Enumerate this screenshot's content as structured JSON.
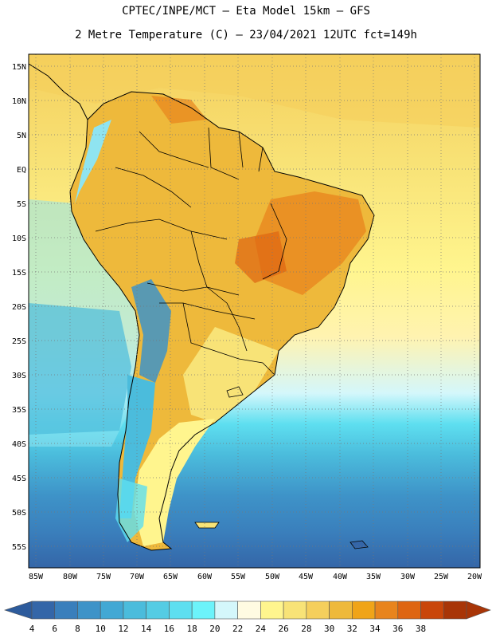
{
  "header": {
    "line1": "CPTEC/INPE/MCT –  Eta Model 15km – GFS",
    "line2": "2 Metre Temperature (C) – 23/04/2021 12UTC fct=149h"
  },
  "map": {
    "lat_labels": [
      "15N",
      "10N",
      "5N",
      "EQ",
      "5S",
      "10S",
      "15S",
      "20S",
      "25S",
      "30S",
      "35S",
      "40S",
      "45S",
      "50S",
      "55S"
    ],
    "lon_labels": [
      "85W",
      "80W",
      "75W",
      "70W",
      "65W",
      "60W",
      "55W",
      "50W",
      "45W",
      "40W",
      "35W",
      "30W",
      "25W",
      "20W"
    ]
  },
  "colorbar": {
    "labels": [
      "4",
      "6",
      "8",
      "10",
      "12",
      "14",
      "16",
      "18",
      "20",
      "22",
      "24",
      "26",
      "28",
      "30",
      "32",
      "34",
      "36",
      "38"
    ],
    "colors": [
      "#3466a8",
      "#3a7fbc",
      "#3e93c8",
      "#42a8d4",
      "#4bbcdc",
      "#54cce4",
      "#5edff0",
      "#6cf3fa",
      "#d4f7fb",
      "#fffbe2",
      "#fff58e",
      "#f8e377",
      "#f5cf5c",
      "#eeb93b",
      "#f0a418",
      "#e8841d",
      "#de6512",
      "#c9460a",
      "#a83507"
    ],
    "low_arrow_color": "#2d5b9c",
    "high_arrow_color": "#a83507"
  }
}
